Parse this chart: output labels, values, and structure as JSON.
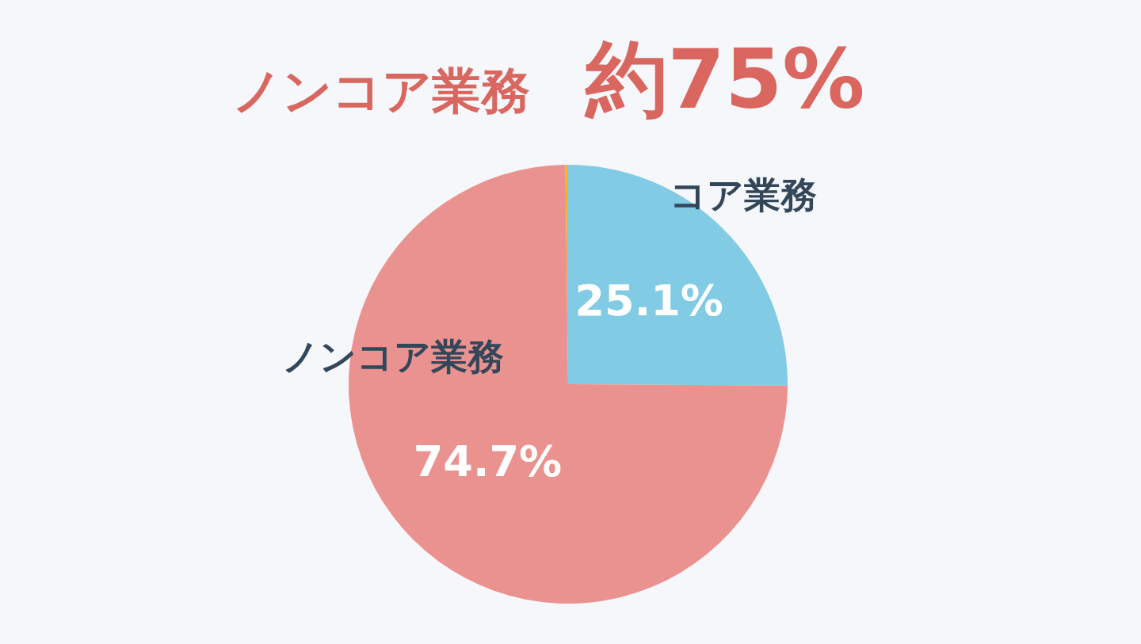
{
  "chart_data": {
    "type": "pie",
    "title": "ノンコア業務　約75%",
    "categories": [
      "コア業務",
      "ノンコア業務",
      null
    ],
    "values": [
      25.1,
      74.7,
      0.2
    ],
    "colors": [
      "#82cbe5",
      "#ea928f",
      "#f0b429"
    ],
    "value_labels": [
      "25.1%",
      "74.7%",
      null
    ],
    "legend": false
  }
}
